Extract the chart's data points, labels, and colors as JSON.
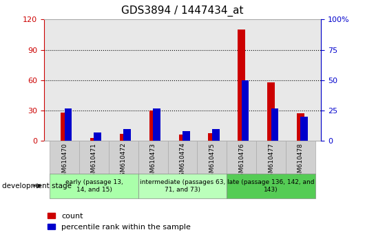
{
  "title": "GDS3894 / 1447434_at",
  "samples": [
    "GSM610470",
    "GSM610471",
    "GSM610472",
    "GSM610473",
    "GSM610474",
    "GSM610475",
    "GSM610476",
    "GSM610477",
    "GSM610478"
  ],
  "count_values": [
    28,
    3,
    7,
    30,
    6,
    8,
    110,
    58,
    27
  ],
  "percentile_values": [
    27,
    7,
    10,
    27,
    8,
    10,
    50,
    27,
    20
  ],
  "ylim_left": [
    0,
    120
  ],
  "ylim_right": [
    0,
    100
  ],
  "yticks_left": [
    0,
    30,
    60,
    90,
    120
  ],
  "yticks_right": [
    0,
    25,
    50,
    75,
    100
  ],
  "left_color": "#cc0000",
  "right_color": "#0000cc",
  "red_bar_width": 0.25,
  "blue_bar_width": 0.25,
  "background_color": "#ffffff",
  "plot_bg_color": "#e8e8e8",
  "grid_color": "#000000",
  "dev_stage_label": "development stage",
  "group_colors": [
    "#aaffaa",
    "#bbffbb",
    "#55cc55"
  ],
  "group_labels": [
    "early (passage 13,\n14, and 15)",
    "intermediate (passages 63,\n71, and 73)",
    "late (passage 136, 142, and\n143)"
  ],
  "group_starts": [
    0,
    3,
    6
  ],
  "group_ends": [
    3,
    6,
    9
  ]
}
